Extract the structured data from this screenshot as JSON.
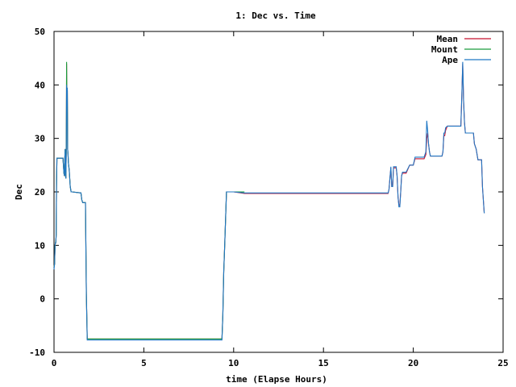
{
  "chart_data": {
    "type": "line",
    "title": "1: Dec vs. Time",
    "xlabel": "time (Elapse Hours)",
    "ylabel": "Dec",
    "xlim": [
      0,
      25
    ],
    "ylim": [
      -10,
      50
    ],
    "xticks": [
      0,
      5,
      10,
      15,
      20,
      25
    ],
    "yticks": [
      -10,
      0,
      10,
      20,
      30,
      40,
      50
    ],
    "grid": false,
    "legend_position": "top-right",
    "series": [
      {
        "name": "Mean",
        "color": "#c8102e",
        "x": [
          0,
          0.03,
          0.06,
          0.08,
          0.1,
          0.12,
          0.14,
          0.16,
          0.2,
          0.25,
          0.5,
          0.55,
          0.58,
          0.6,
          0.62,
          0.64,
          0.66,
          0.68,
          0.7,
          0.72,
          0.74,
          0.76,
          0.78,
          0.8,
          0.85,
          0.9,
          0.95,
          1.0,
          1.5,
          1.55,
          1.6,
          1.65,
          1.7,
          1.75,
          1.8,
          1.85,
          1.9,
          2.0,
          5.0,
          9.0,
          9.35,
          9.4,
          9.45,
          9.5,
          9.55,
          9.6,
          10.0,
          10.6,
          18.6,
          18.65,
          18.7,
          18.75,
          18.8,
          18.85,
          18.9,
          18.95,
          19.0,
          19.05,
          19.1,
          19.15,
          19.2,
          19.25,
          19.3,
          19.35,
          19.4,
          19.6,
          19.8,
          20.0,
          20.1,
          20.2,
          20.6,
          20.7,
          20.75,
          20.8,
          20.85,
          20.9,
          20.95,
          21.0,
          21.6,
          21.65,
          21.7,
          21.75,
          21.8,
          21.9,
          22.0,
          22.6,
          22.65,
          22.7,
          22.75,
          22.8,
          22.85,
          22.9,
          23.0,
          23.3,
          23.35,
          23.4,
          23.5,
          23.6,
          23.7,
          23.8,
          23.85,
          23.9,
          23.95
        ],
        "y": [
          6,
          6.5,
          10,
          10.5,
          10.5,
          12,
          21,
          26.3,
          26.3,
          26.3,
          26.3,
          23.5,
          23,
          26.3,
          28,
          23,
          22.5,
          28,
          44,
          36,
          39,
          28,
          27,
          25.5,
          24,
          21,
          20,
          20,
          19.8,
          18.5,
          18,
          18,
          18,
          18,
          1,
          -7.5,
          -7.5,
          -7.5,
          -7.5,
          -7.5,
          -7.5,
          -3,
          5,
          10,
          15,
          20,
          20,
          19.7,
          19.7,
          20.5,
          22.5,
          24.5,
          21,
          21,
          24.5,
          24.5,
          24.5,
          24.5,
          23,
          19,
          17.5,
          17.5,
          20,
          23,
          23.5,
          23.5,
          25,
          25,
          26.2,
          26.2,
          26.2,
          27,
          30,
          31,
          29,
          27.5,
          26.7,
          26.7,
          26.7,
          27.5,
          30.5,
          30.5,
          31.5,
          32.3,
          32.3,
          32.3,
          32.3,
          38,
          44,
          37,
          33,
          31,
          31,
          31,
          31,
          29,
          28,
          26,
          26,
          26,
          21,
          18.5,
          16
        ]
      },
      {
        "name": "Mount",
        "color": "#1a9c3c",
        "x": [
          0,
          0.03,
          0.06,
          0.08,
          0.1,
          0.12,
          0.14,
          0.16,
          0.2,
          0.25,
          0.5,
          0.55,
          0.58,
          0.6,
          0.62,
          0.64,
          0.66,
          0.68,
          0.7,
          0.72,
          0.74,
          0.76,
          0.78,
          0.8,
          0.85,
          0.9,
          0.95,
          1.0,
          1.5,
          1.55,
          1.6,
          1.65,
          1.7,
          1.75,
          1.8,
          1.85,
          1.9,
          2.0,
          2.5,
          5.0,
          9.0,
          9.35,
          9.4,
          9.45,
          9.5,
          9.55,
          9.6,
          10.0,
          10.6
        ],
        "y": [
          6,
          6.5,
          10,
          10.5,
          10.5,
          12,
          21,
          26.3,
          26.3,
          26.3,
          26.3,
          23.5,
          23,
          26.3,
          28,
          23,
          22.5,
          28,
          44.3,
          36,
          39,
          28,
          27,
          25.5,
          24,
          21,
          20,
          20,
          19.8,
          18.5,
          18,
          18,
          18,
          18,
          1,
          -7.5,
          -7.5,
          -7.5,
          -7.5,
          -7.5,
          -7.5,
          -7.5,
          -3,
          5,
          10,
          15,
          20,
          20,
          20
        ]
      },
      {
        "name": "Ape",
        "color": "#1f77c4",
        "x": [
          0,
          0.03,
          0.06,
          0.08,
          0.1,
          0.12,
          0.14,
          0.16,
          0.2,
          0.25,
          0.5,
          0.55,
          0.58,
          0.6,
          0.62,
          0.64,
          0.66,
          0.68,
          0.7,
          0.72,
          0.74,
          0.76,
          0.78,
          0.8,
          0.85,
          0.9,
          0.95,
          1.0,
          1.5,
          1.55,
          1.6,
          1.65,
          1.7,
          1.75,
          1.8,
          1.85,
          1.9,
          2.0,
          5.0,
          9.0,
          9.35,
          9.4,
          9.45,
          9.5,
          9.55,
          9.6,
          10.0,
          10.6,
          18.6,
          18.65,
          18.7,
          18.75,
          18.8,
          18.85,
          18.9,
          18.95,
          19.0,
          19.05,
          19.1,
          19.15,
          19.2,
          19.25,
          19.3,
          19.35,
          19.4,
          19.6,
          19.8,
          20.0,
          20.1,
          20.2,
          20.6,
          20.7,
          20.75,
          20.8,
          20.85,
          20.9,
          20.95,
          21.0,
          21.6,
          21.65,
          21.7,
          21.75,
          21.8,
          21.9,
          22.0,
          22.6,
          22.65,
          22.7,
          22.75,
          22.8,
          22.85,
          22.9,
          23.0,
          23.3,
          23.35,
          23.4,
          23.5,
          23.6,
          23.7,
          23.8,
          23.85,
          23.9,
          23.95
        ],
        "y": [
          5.5,
          6.5,
          10,
          10.5,
          10.5,
          12,
          21,
          26.3,
          26.3,
          26.3,
          26.3,
          23.5,
          23,
          26.3,
          28,
          23,
          22.5,
          28,
          40,
          36,
          39.5,
          28,
          27,
          25.5,
          24,
          21,
          20,
          20,
          19.8,
          18.5,
          18,
          18,
          18,
          18,
          1,
          -7.7,
          -7.7,
          -7.7,
          -7.7,
          -7.7,
          -7.7,
          -3,
          5,
          10,
          15,
          20,
          20,
          19.8,
          19.8,
          20.5,
          22.5,
          24.7,
          21,
          21,
          24.7,
          24.7,
          24.7,
          24.7,
          23,
          19,
          17.2,
          17.2,
          20,
          23,
          23.7,
          23.7,
          25,
          25,
          26.5,
          26.5,
          26.5,
          27.5,
          33.3,
          31.5,
          29,
          27.5,
          26.7,
          26.7,
          26.7,
          27.5,
          31,
          31,
          32,
          32.3,
          32.3,
          32.3,
          32.3,
          38,
          44.3,
          37,
          33,
          31,
          31,
          31,
          31,
          29,
          28,
          26,
          26,
          26,
          21,
          18.5,
          16
        ]
      }
    ]
  }
}
